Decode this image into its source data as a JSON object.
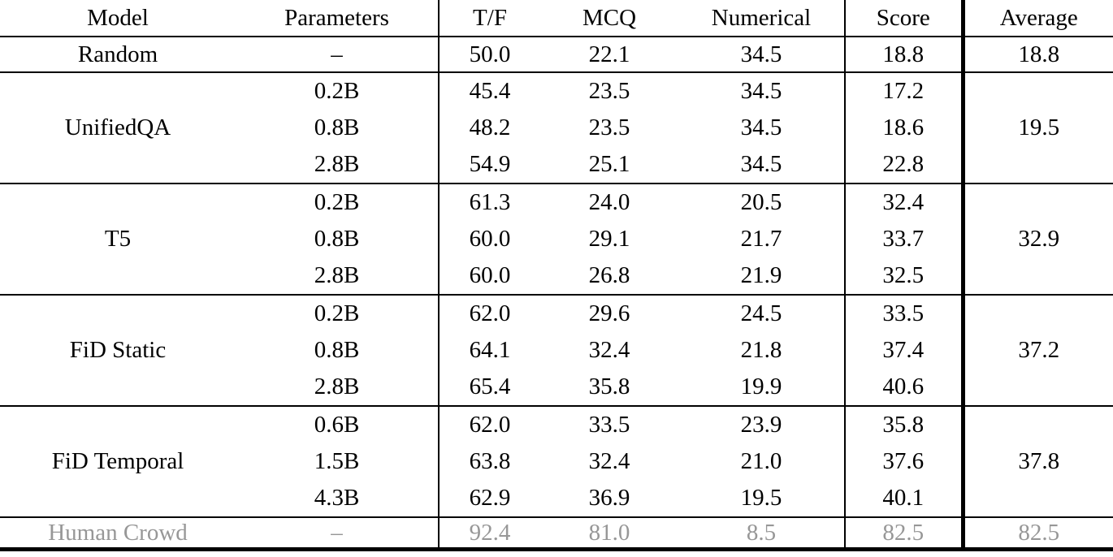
{
  "table": {
    "columns": {
      "model": "Model",
      "parameters": "Parameters",
      "tf": "T/F",
      "mcq": "MCQ",
      "numerical": "Numerical",
      "score": "Score",
      "average": "Average"
    },
    "groups": [
      {
        "model": "Random",
        "average": "18.8",
        "rows": [
          {
            "params": "–",
            "tf": "50.0",
            "mcq": "22.1",
            "num": "34.5",
            "score": "18.8"
          }
        ]
      },
      {
        "model": "UnifiedQA",
        "average": "19.5",
        "rows": [
          {
            "params": "0.2B",
            "tf": "45.4",
            "mcq": "23.5",
            "num": "34.5",
            "score": "17.2"
          },
          {
            "params": "0.8B",
            "tf": "48.2",
            "mcq": "23.5",
            "num": "34.5",
            "score": "18.6"
          },
          {
            "params": "2.8B",
            "tf": "54.9",
            "mcq": "25.1",
            "num": "34.5",
            "score": "22.8"
          }
        ]
      },
      {
        "model": "T5",
        "average": "32.9",
        "rows": [
          {
            "params": "0.2B",
            "tf": "61.3",
            "mcq": "24.0",
            "num": "20.5",
            "score": "32.4"
          },
          {
            "params": "0.8B",
            "tf": "60.0",
            "mcq": "29.1",
            "num": "21.7",
            "score": "33.7"
          },
          {
            "params": "2.8B",
            "tf": "60.0",
            "mcq": "26.8",
            "num": "21.9",
            "score": "32.5"
          }
        ]
      },
      {
        "model": "FiD Static",
        "average": "37.2",
        "rows": [
          {
            "params": "0.2B",
            "tf": "62.0",
            "mcq": "29.6",
            "num": "24.5",
            "score": "33.5"
          },
          {
            "params": "0.8B",
            "tf": "64.1",
            "mcq": "32.4",
            "num": "21.8",
            "score": "37.4"
          },
          {
            "params": "2.8B",
            "tf": "65.4",
            "tf_bold": true,
            "mcq": "35.8",
            "num": "19.9",
            "score": "40.6",
            "score_bold": true
          }
        ]
      },
      {
        "model": "FiD Temporal",
        "average": "37.8",
        "average_bold": true,
        "rows": [
          {
            "params": "0.6B",
            "tf": "62.0",
            "mcq": "33.5",
            "num": "23.9",
            "score": "35.8"
          },
          {
            "params": "1.5B",
            "tf": "63.8",
            "mcq": "32.4",
            "num": "21.0",
            "score": "37.6"
          },
          {
            "params": "4.3B",
            "tf": "62.9",
            "mcq": "36.9",
            "mcq_bold": true,
            "num": "19.5",
            "num_bold": true,
            "score": "40.1"
          }
        ]
      },
      {
        "model": "Human Crowd",
        "average": "82.5",
        "muted": true,
        "rows": [
          {
            "params": "–",
            "tf": "92.4",
            "mcq": "81.0",
            "num": "8.5",
            "score": "82.5"
          }
        ]
      }
    ],
    "colors": {
      "text": "#000000",
      "muted_text": "#979797",
      "rule": "#000000"
    }
  }
}
